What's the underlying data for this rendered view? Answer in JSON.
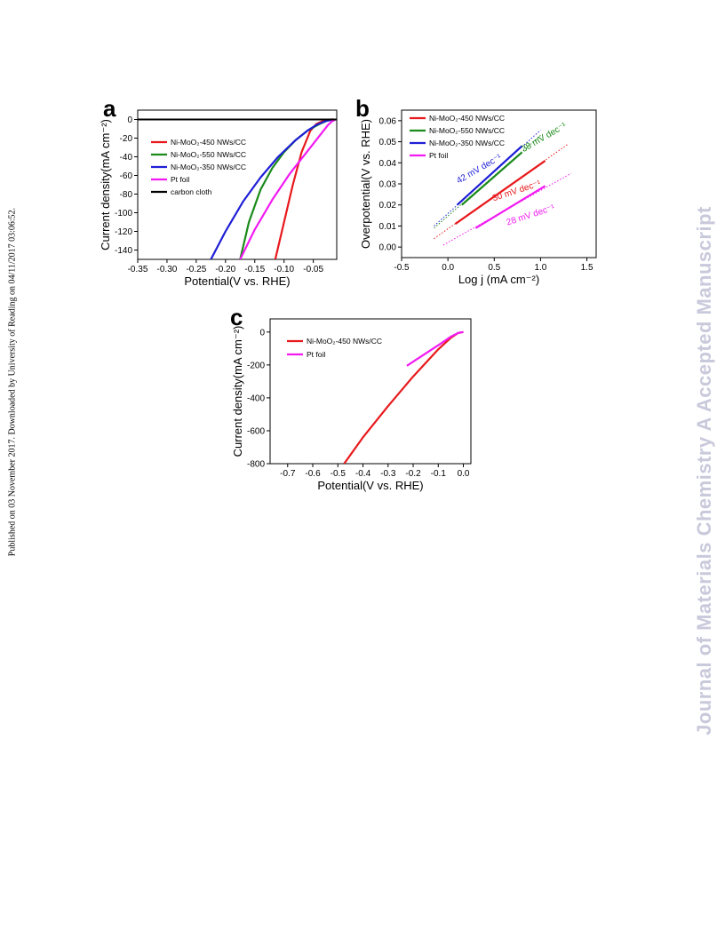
{
  "side_text_left": "Published on 03 November 2017. Downloaded by University of Reading on 04/11/2017 03:06:52.",
  "side_text_right": "Journal of Materials Chemistry A Accepted Manuscript",
  "colors": {
    "red": "#e8191c",
    "green": "#1a8a1a",
    "blue": "#1f1fd6",
    "magenta": "#f21af2",
    "black": "#000000"
  },
  "chart_data": [
    {
      "panel": "a",
      "type": "line",
      "xlabel": "Potential(V vs. RHE)",
      "ylabel": "Current density(mA cm⁻²)",
      "xlim": [
        -0.35,
        -0.01
      ],
      "ylim": [
        -150,
        10
      ],
      "xticks": [
        "-0.35",
        "-0.30",
        "-0.25",
        "-0.20",
        "-0.15",
        "-0.10",
        "-0.05"
      ],
      "xtick_values": [
        -0.35,
        -0.3,
        -0.25,
        -0.2,
        -0.15,
        -0.1,
        -0.05
      ],
      "yticks": [
        "0",
        "-20",
        "-40",
        "-60",
        "-80",
        "-100",
        "-120",
        "-140"
      ],
      "ytick_values": [
        0,
        -20,
        -40,
        -60,
        -80,
        -100,
        -120,
        -140
      ],
      "legend": "top-left",
      "series": [
        {
          "name": "Ni-MoO₂-450 NWs/CC",
          "color": "#e8191c",
          "x": [
            -0.115,
            -0.1,
            -0.085,
            -0.07,
            -0.055,
            -0.045,
            -0.035,
            -0.025,
            -0.02,
            -0.015
          ],
          "y": [
            -150,
            -110,
            -70,
            -35,
            -12,
            -5,
            -2,
            -0.5,
            0,
            0
          ]
        },
        {
          "name": "Ni-MoO₂-550 NWs/CC",
          "color": "#1a8a1a",
          "x": [
            -0.175,
            -0.16,
            -0.14,
            -0.12,
            -0.1,
            -0.08,
            -0.06,
            -0.04,
            -0.025,
            -0.015
          ],
          "y": [
            -150,
            -110,
            -75,
            -52,
            -35,
            -22,
            -12,
            -5,
            -1,
            0
          ]
        },
        {
          "name": "Ni-MoO₂-350 NWs/CC",
          "color": "#1f1fd6",
          "x": [
            -0.225,
            -0.2,
            -0.17,
            -0.14,
            -0.11,
            -0.08,
            -0.06,
            -0.045,
            -0.03,
            -0.02,
            -0.015
          ],
          "y": [
            -150,
            -120,
            -88,
            -62,
            -40,
            -22,
            -12,
            -6,
            -2,
            -0.5,
            0
          ]
        },
        {
          "name": "Pt foil",
          "color": "#f21af2",
          "x": [
            -0.175,
            -0.15,
            -0.12,
            -0.09,
            -0.07,
            -0.05,
            -0.035,
            -0.025,
            -0.018,
            -0.012
          ],
          "y": [
            -150,
            -118,
            -86,
            -58,
            -42,
            -26,
            -14,
            -6,
            -2,
            0
          ]
        },
        {
          "name": "carbon cloth",
          "color": "#000000",
          "x": [
            -0.35,
            -0.01
          ],
          "y": [
            0,
            0
          ]
        }
      ]
    },
    {
      "panel": "b",
      "type": "line",
      "xlabel": "Log j (mA cm⁻²)",
      "ylabel": "Overpotential(V vs. RHE)",
      "xlim": [
        -0.5,
        1.6
      ],
      "ylim": [
        -0.005,
        0.065
      ],
      "xticks": [
        "-0.5",
        "0.0",
        "0.5",
        "1.0",
        "1.5"
      ],
      "xtick_values": [
        -0.5,
        0.0,
        0.5,
        1.0,
        1.5
      ],
      "yticks": [
        "0.00",
        "0.01",
        "0.02",
        "0.03",
        "0.04",
        "0.05",
        "0.06"
      ],
      "ytick_values": [
        0.0,
        0.01,
        0.02,
        0.03,
        0.04,
        0.05,
        0.06
      ],
      "legend": "top-left",
      "series": [
        {
          "name": "Ni-MoO₂-450 NWs/CC",
          "color": "#e8191c",
          "x": [
            0.08,
            1.05
          ],
          "y": [
            0.011,
            0.041
          ],
          "fit_x": [
            -0.15,
            1.3
          ],
          "fit_y": [
            0.004,
            0.049
          ]
        },
        {
          "name": "Ni-MoO₂-550 NWs/CC",
          "color": "#1a8a1a",
          "x": [
            0.15,
            0.8
          ],
          "y": [
            0.02,
            0.045
          ],
          "fit_x": [
            -0.15,
            1.0
          ],
          "fit_y": [
            0.009,
            0.053
          ]
        },
        {
          "name": "Ni-MoO₂-350 NWs/CC",
          "color": "#1f1fd6",
          "x": [
            0.1,
            0.8
          ],
          "y": [
            0.02,
            0.048
          ],
          "fit_x": [
            -0.15,
            1.0
          ],
          "fit_y": [
            0.01,
            0.0555
          ]
        },
        {
          "name": "Pt foil",
          "color": "#f21af2",
          "x": [
            0.3,
            1.05
          ],
          "y": [
            0.009,
            0.029
          ],
          "fit_x": [
            -0.05,
            1.33
          ],
          "fit_y": [
            0.001,
            0.035
          ]
        }
      ],
      "annotations": [
        {
          "text": "42 mV dec⁻¹",
          "color": "#1f1fd6",
          "x": 0.35,
          "y": 0.036,
          "angle": -30
        },
        {
          "text": "38 mV dec⁻¹",
          "color": "#1a8a1a",
          "x": 1.05,
          "y": 0.051,
          "angle": -30
        },
        {
          "text": "30 mV dec⁻¹",
          "color": "#e8191c",
          "x": 0.75,
          "y": 0.0255,
          "angle": -18
        },
        {
          "text": "28 mV dec⁻¹",
          "color": "#f21af2",
          "x": 0.9,
          "y": 0.014,
          "angle": -18
        }
      ]
    },
    {
      "panel": "c",
      "type": "line",
      "xlabel": "Potential(V vs. RHE)",
      "ylabel": "Current density(mA cm⁻²)",
      "xlim": [
        -0.77,
        0.03
      ],
      "ylim": [
        -800,
        80
      ],
      "xticks": [
        "-0.7",
        "-0.6",
        "-0.5",
        "-0.4",
        "-0.3",
        "-0.2",
        "-0.1",
        "0.0"
      ],
      "xtick_values": [
        -0.7,
        -0.6,
        -0.5,
        -0.4,
        -0.3,
        -0.2,
        -0.1,
        0.0
      ],
      "yticks": [
        "0",
        "-200",
        "-400",
        "-600",
        "-800"
      ],
      "ytick_values": [
        0,
        -200,
        -400,
        -600,
        -800
      ],
      "legend": "top-left",
      "series": [
        {
          "name": "Ni-MoO₂-450 NWs/CC",
          "color": "#e8191c",
          "x": [
            -0.475,
            -0.4,
            -0.3,
            -0.2,
            -0.1,
            -0.05,
            -0.02,
            0.0
          ],
          "y": [
            -800,
            -640,
            -450,
            -270,
            -105,
            -35,
            -5,
            0
          ]
        },
        {
          "name": "Pt foil",
          "color": "#f21af2",
          "x": [
            -0.225,
            -0.18,
            -0.13,
            -0.09,
            -0.05,
            -0.02,
            0.0
          ],
          "y": [
            -205,
            -160,
            -110,
            -70,
            -28,
            -5,
            0
          ]
        }
      ]
    }
  ],
  "panels": {
    "a": {
      "letter": "a"
    },
    "b": {
      "letter": "b"
    },
    "c": {
      "letter": "c"
    }
  }
}
